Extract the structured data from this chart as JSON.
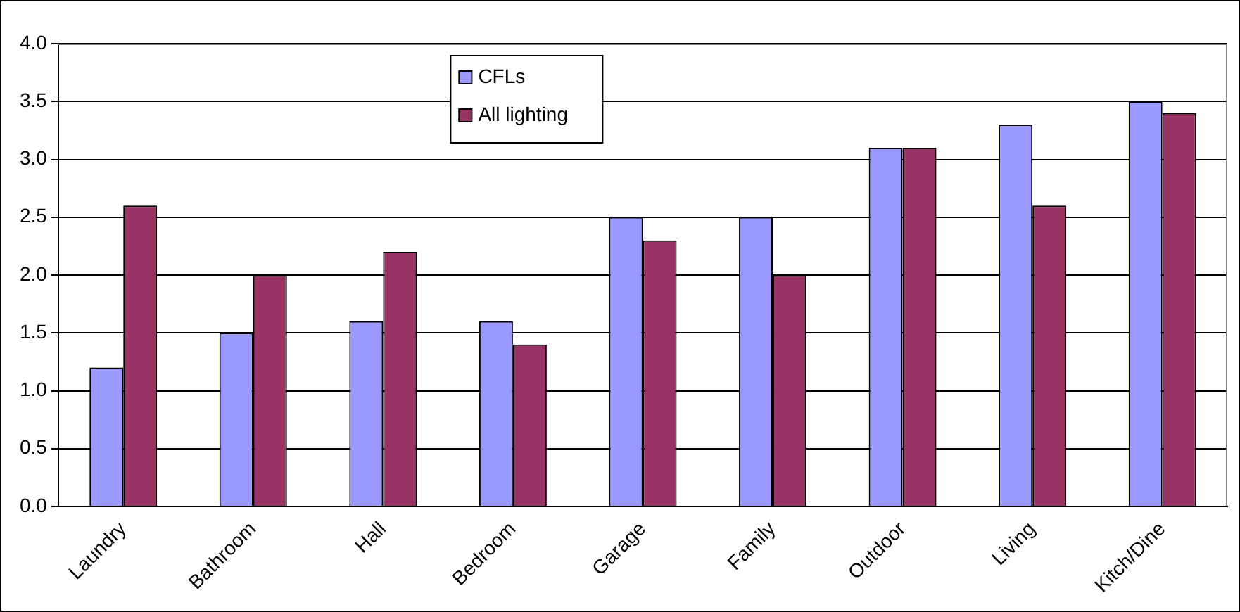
{
  "chart_data": {
    "type": "bar",
    "categories": [
      "Laundry",
      "Bathroom",
      "Hall",
      "Bedroom",
      "Garage",
      "Family",
      "Outdoor",
      "Living",
      "Kitch/Dine"
    ],
    "series": [
      {
        "name": "CFLs",
        "color": "#9999ff",
        "values": [
          1.2,
          1.5,
          1.6,
          1.6,
          2.5,
          2.5,
          3.1,
          3.3,
          3.5
        ]
      },
      {
        "name": "All lighting",
        "color": "#993366",
        "values": [
          2.6,
          2.0,
          2.2,
          1.4,
          2.3,
          2.0,
          3.1,
          2.6,
          3.4
        ]
      }
    ],
    "ylim": [
      0,
      4
    ],
    "yticks": [
      {
        "value": 0,
        "label": "0.0"
      },
      {
        "value": 0.5,
        "label": "0.5"
      },
      {
        "value": 1,
        "label": "1.0"
      },
      {
        "value": 1.5,
        "label": "1.5"
      },
      {
        "value": 2,
        "label": "2.0"
      },
      {
        "value": 2.5,
        "label": "2.5"
      },
      {
        "value": 3,
        "label": "3.0"
      },
      {
        "value": 3.5,
        "label": "3.5"
      },
      {
        "value": 4,
        "label": "4.0"
      }
    ],
    "grid": "y",
    "legend": "top"
  }
}
